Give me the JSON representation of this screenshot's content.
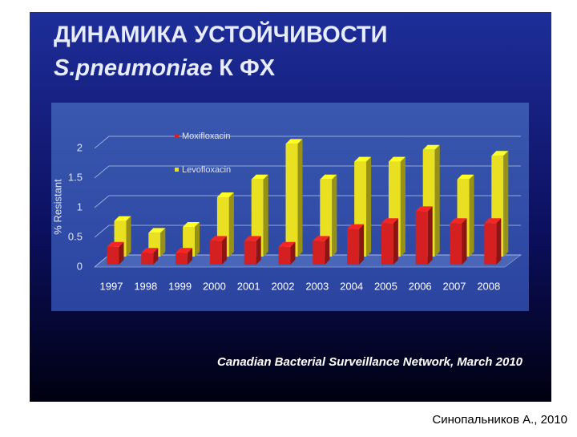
{
  "slide": {
    "title": "ДИНАМИКА УСТОЙЧИВОСТИ",
    "subtitle_italic": "S.pneumoniae",
    "subtitle": "К ФХ",
    "source": "Canadian Bacterial Surveillance Network, March 2010",
    "author": "Синопальников А., 2010"
  },
  "chart_data": {
    "type": "bar3d",
    "y_label": "% Resistant",
    "categories": [
      "1997",
      "1998",
      "1999",
      "2000",
      "2001",
      "2002",
      "2003",
      "2004",
      "2005",
      "2006",
      "2007",
      "2008"
    ],
    "series": [
      {
        "name": "Moxifloxacin",
        "color": "#d42020",
        "values": [
          0.3,
          0.2,
          0.2,
          0.4,
          0.4,
          0.3,
          0.4,
          0.6,
          0.7,
          0.9,
          0.7,
          0.7
        ]
      },
      {
        "name": "Levofloxacin",
        "color": "#e8e020",
        "values": [
          0.6,
          0.4,
          0.5,
          1.0,
          1.3,
          1.9,
          1.3,
          1.6,
          1.6,
          1.8,
          1.3,
          1.7
        ]
      }
    ],
    "ylim": [
      0,
      2
    ],
    "yticks": [
      0,
      0.5,
      1,
      1.5,
      2
    ],
    "grid": true,
    "legend": "top-left"
  }
}
